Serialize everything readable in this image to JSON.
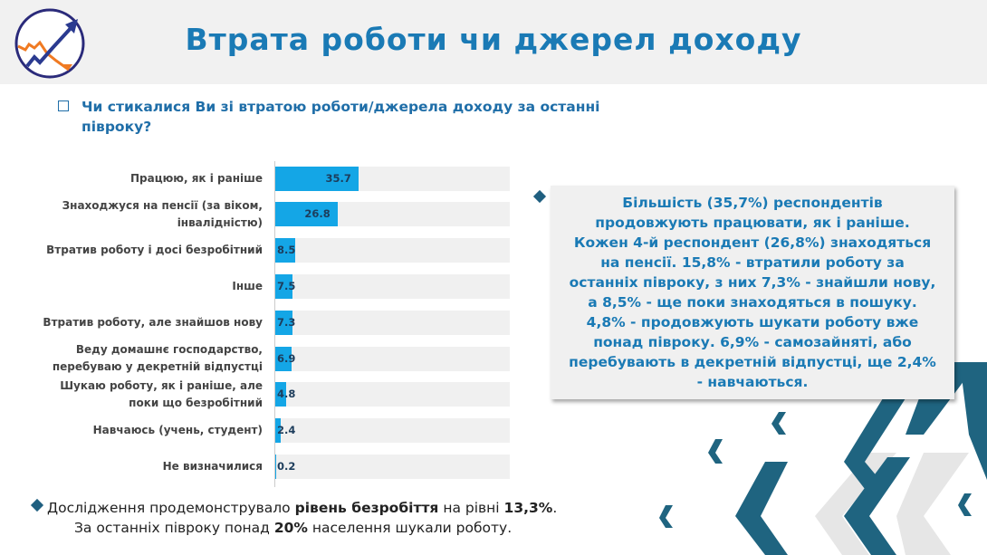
{
  "header": {
    "title": "Втрата роботи чи джерел доходу"
  },
  "question": "Чи стикалися Ви зі втратою роботи/джерела доходу за останні півроку?",
  "chart_data": {
    "type": "bar",
    "orientation": "horizontal",
    "categories": [
      "Працюю, як і раніше",
      "Знаходжуся на пенсії (за віком, інвалідністю)",
      "Втратив роботу і досі безробітний",
      "Інше",
      "Втратив роботу, але знайшов нову",
      "Веду домашнє господарство, перебуваю у декретній відпустці",
      "Шукаю роботу, як і раніше, але поки що безробітний",
      "Навчаюсь (учень, студент)",
      "Не визначилися"
    ],
    "values": [
      35.7,
      26.8,
      8.5,
      7.5,
      7.3,
      6.9,
      4.8,
      2.4,
      0.2
    ],
    "value_labels": [
      "35.7",
      "26.8",
      "8.5",
      "7.5",
      "7.3",
      "6.9",
      "4.8",
      "2.4",
      "0.2"
    ],
    "xlim": [
      0,
      100
    ],
    "colors": {
      "bar": "#14a6e6",
      "track": "#f0f0f0"
    }
  },
  "callout": "Більшість (35,7%) респондентів продовжують працювати, як і раніше. Кожен 4-й респондент (26,8%) знаходяться на пенсії. 15,8% - втратили роботу за останніх півроку, з них 7,3% - знайшли нову, а 8,5% - ще поки знаходяться в пошуку. 4,8% - продовжують шукати роботу вже понад півроку. 6,9% - самозайняті, або перебувають в декретній відпустці, ще 2,4% - навчаються.",
  "bottom": {
    "l1_a": "Дослідження продемонструвало ",
    "l1_b": "рівень безробіття",
    "l1_c": " на рівні ",
    "l1_d": "13,3%",
    ".": ".",
    "l2_a": "За останніх півроку понад ",
    "l2_b": "20%",
    "l2_c": " населення шукали роботу."
  }
}
